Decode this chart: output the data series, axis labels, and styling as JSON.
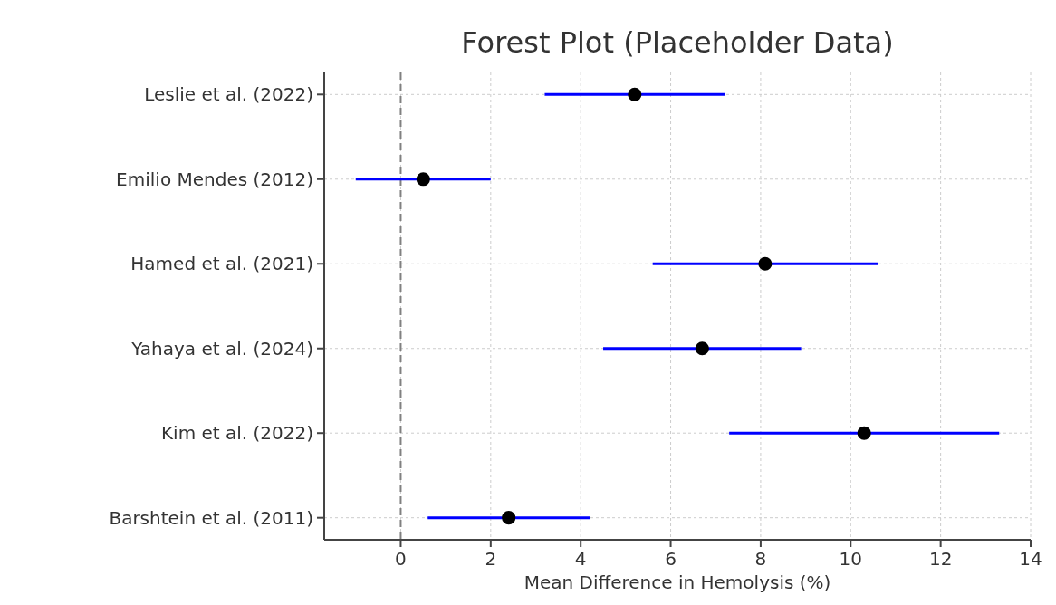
{
  "chart_data": {
    "type": "scatter",
    "orientation": "horizontal",
    "title": "Forest Plot (Placeholder Data)",
    "xlabel": "Mean Difference in Hemolysis (%)",
    "categories": [
      "Leslie et al. (2022)",
      "Emilio Mendes (2012)",
      "Hamed et al. (2021)",
      "Yahaya et al. (2024)",
      "Kim et al. (2022)",
      "Barshtein et al. (2011)"
    ],
    "color": "#000000",
    "values": [
      5.2,
      0.5,
      8.1,
      6.7,
      10.3,
      2.4
    ],
    "errors": [
      [
        3.2,
        7.2
      ],
      [
        -1.0,
        2.0
      ],
      [
        5.6,
        10.6
      ],
      [
        4.5,
        8.9
      ],
      [
        7.3,
        13.3
      ],
      [
        0.6,
        4.2
      ]
    ],
    "xlim": [
      -1.7,
      14
    ],
    "xticks": [
      0,
      2,
      4,
      6,
      8,
      10,
      12,
      14
    ],
    "ref_lines": [
      {
        "axis": "x",
        "value": 0,
        "color": "#808080",
        "line_style": "dashed"
      }
    ],
    "grid": true,
    "marker": "circle"
  }
}
